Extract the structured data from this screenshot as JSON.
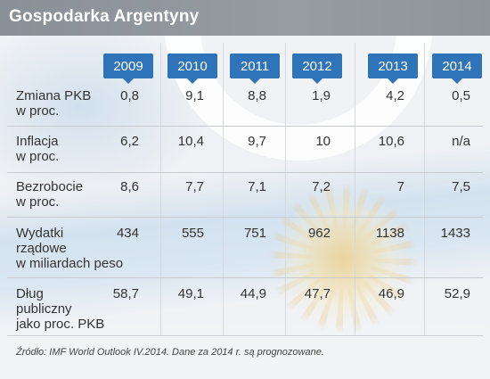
{
  "title": "Gospodarka Argentyny",
  "years": [
    "2009",
    "2010",
    "2011",
    "2012",
    "2013",
    "2014"
  ],
  "rows": [
    {
      "label": "Zmiana PKB\nw proc.",
      "values": [
        "0,8",
        "9,1",
        "8,8",
        "1,9",
        "4,2",
        "0,5"
      ]
    },
    {
      "label": "Inflacja\nw proc.",
      "values": [
        "6,2",
        "10,4",
        "9,7",
        "10",
        "10,6",
        "n/a"
      ]
    },
    {
      "label": "Bezrobocie\nw proc.",
      "values": [
        "8,6",
        "7,7",
        "7,1",
        "7,2",
        "7",
        "7,5"
      ]
    },
    {
      "label": "Wydatki\nrządowe\nw miliardach peso",
      "values": [
        "434",
        "555",
        "751",
        "962",
        "1138",
        "1433"
      ]
    },
    {
      "label": "Dług\npubliczny\njako proc. PKB",
      "values": [
        "58,7",
        "49,1",
        "44,9",
        "47,7",
        "46,9",
        "52,9"
      ]
    }
  ],
  "source": "Źródło: IMF World Outlook IV.2014. Dane za 2014 r. są prognozowane.",
  "colors": {
    "header_bg": "#8e949b",
    "year_tab_bg": "#2f73b8",
    "text": "#333333"
  }
}
